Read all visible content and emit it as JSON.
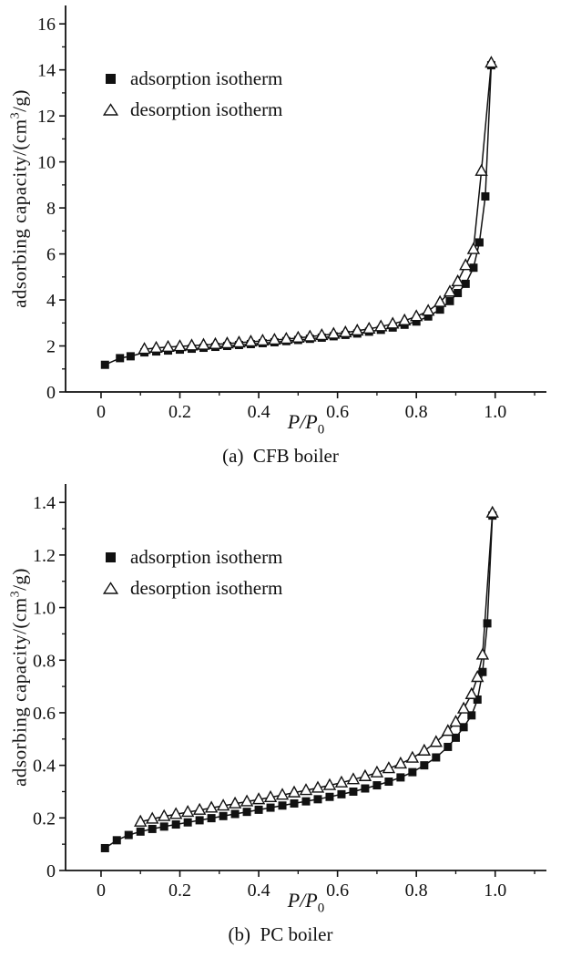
{
  "page": {
    "background": "#ffffff",
    "text_color": "#111111"
  },
  "colors": {
    "axis": "#111111",
    "line": "#111111",
    "marker_fill": "#111111",
    "marker_open_fill": "#ffffff"
  },
  "icons": {
    "adsorption_marker": "filled-square-icon",
    "desorption_marker": "open-triangle-icon"
  },
  "chart_data": [
    {
      "id": "a",
      "type": "line",
      "caption": "(a)  CFB boiler",
      "xlabel_main": "P/P",
      "xlabel_sub": "0",
      "ylabel_pre": "adsorbing capacity/(cm",
      "ylabel_sup": "3",
      "ylabel_post": "/g)",
      "xlim": [
        -0.09,
        1.13
      ],
      "ylim": [
        0,
        16.8
      ],
      "xticks": [
        0,
        0.2,
        0.4,
        0.6,
        0.8,
        1.0
      ],
      "xtick_labels": [
        "0",
        "0.2",
        "0.4",
        "0.6",
        "0.8",
        "1.0"
      ],
      "yticks": [
        0,
        2,
        4,
        6,
        8,
        10,
        12,
        14,
        16
      ],
      "ytick_labels": [
        "0",
        "2",
        "4",
        "6",
        "8",
        "10",
        "12",
        "14",
        "16"
      ],
      "grid": false,
      "legend_position": "upper-left-inside",
      "series": [
        {
          "name": "adsorption isotherm",
          "marker": "square",
          "points": [
            [
              0.01,
              1.18
            ],
            [
              0.048,
              1.47
            ],
            [
              0.075,
              1.55
            ],
            [
              0.11,
              1.72
            ],
            [
              0.14,
              1.76
            ],
            [
              0.17,
              1.8
            ],
            [
              0.2,
              1.84
            ],
            [
              0.23,
              1.88
            ],
            [
              0.26,
              1.92
            ],
            [
              0.29,
              1.96
            ],
            [
              0.32,
              2.0
            ],
            [
              0.35,
              2.04
            ],
            [
              0.38,
              2.08
            ],
            [
              0.41,
              2.12
            ],
            [
              0.44,
              2.16
            ],
            [
              0.47,
              2.21
            ],
            [
              0.5,
              2.26
            ],
            [
              0.53,
              2.31
            ],
            [
              0.56,
              2.36
            ],
            [
              0.59,
              2.42
            ],
            [
              0.62,
              2.48
            ],
            [
              0.65,
              2.54
            ],
            [
              0.68,
              2.62
            ],
            [
              0.71,
              2.7
            ],
            [
              0.74,
              2.8
            ],
            [
              0.77,
              2.92
            ],
            [
              0.8,
              3.06
            ],
            [
              0.83,
              3.28
            ],
            [
              0.86,
              3.58
            ],
            [
              0.885,
              3.95
            ],
            [
              0.905,
              4.3
            ],
            [
              0.925,
              4.7
            ],
            [
              0.945,
              5.4
            ],
            [
              0.96,
              6.5
            ],
            [
              0.975,
              8.5
            ],
            [
              0.99,
              14.2
            ]
          ]
        },
        {
          "name": "desorption isotherm",
          "marker": "triangle",
          "points": [
            [
              0.11,
              1.86
            ],
            [
              0.14,
              1.91
            ],
            [
              0.17,
              1.95
            ],
            [
              0.2,
              1.98
            ],
            [
              0.23,
              2.01
            ],
            [
              0.26,
              2.04
            ],
            [
              0.29,
              2.07
            ],
            [
              0.32,
              2.1
            ],
            [
              0.35,
              2.14
            ],
            [
              0.38,
              2.18
            ],
            [
              0.41,
              2.22
            ],
            [
              0.44,
              2.26
            ],
            [
              0.47,
              2.3
            ],
            [
              0.5,
              2.35
            ],
            [
              0.53,
              2.4
            ],
            [
              0.56,
              2.46
            ],
            [
              0.59,
              2.52
            ],
            [
              0.62,
              2.58
            ],
            [
              0.65,
              2.66
            ],
            [
              0.68,
              2.74
            ],
            [
              0.71,
              2.84
            ],
            [
              0.74,
              2.96
            ],
            [
              0.77,
              3.1
            ],
            [
              0.8,
              3.28
            ],
            [
              0.83,
              3.52
            ],
            [
              0.86,
              3.9
            ],
            [
              0.885,
              4.35
            ],
            [
              0.905,
              4.8
            ],
            [
              0.925,
              5.5
            ],
            [
              0.945,
              6.2
            ],
            [
              0.965,
              9.6
            ],
            [
              0.99,
              14.3
            ]
          ]
        }
      ]
    },
    {
      "id": "b",
      "type": "line",
      "caption": "(b)  PC boiler",
      "xlabel_main": "P/P",
      "xlabel_sub": "0",
      "ylabel_pre": "adsorbing capacity/(cm",
      "ylabel_sup": "3",
      "ylabel_post": "/g)",
      "xlim": [
        -0.09,
        1.13
      ],
      "ylim": [
        0,
        1.47
      ],
      "xticks": [
        0,
        0.2,
        0.4,
        0.6,
        0.8,
        1.0
      ],
      "xtick_labels": [
        "0",
        "0.2",
        "0.4",
        "0.6",
        "0.8",
        "1.0"
      ],
      "yticks": [
        0,
        0.2,
        0.4,
        0.6,
        0.8,
        1.0,
        1.2,
        1.4
      ],
      "ytick_labels": [
        "0",
        "0.2",
        "0.4",
        "0.6",
        "0.8",
        "1.0",
        "1.2",
        "1.4"
      ],
      "grid": false,
      "legend_position": "upper-left-inside",
      "series": [
        {
          "name": "adsorption isotherm",
          "marker": "square",
          "points": [
            [
              0.01,
              0.085
            ],
            [
              0.04,
              0.115
            ],
            [
              0.07,
              0.135
            ],
            [
              0.1,
              0.148
            ],
            [
              0.13,
              0.158
            ],
            [
              0.16,
              0.167
            ],
            [
              0.19,
              0.175
            ],
            [
              0.22,
              0.183
            ],
            [
              0.25,
              0.191
            ],
            [
              0.28,
              0.199
            ],
            [
              0.31,
              0.207
            ],
            [
              0.34,
              0.215
            ],
            [
              0.37,
              0.223
            ],
            [
              0.4,
              0.231
            ],
            [
              0.43,
              0.239
            ],
            [
              0.46,
              0.247
            ],
            [
              0.49,
              0.255
            ],
            [
              0.52,
              0.263
            ],
            [
              0.55,
              0.271
            ],
            [
              0.58,
              0.28
            ],
            [
              0.61,
              0.29
            ],
            [
              0.64,
              0.3
            ],
            [
              0.67,
              0.312
            ],
            [
              0.7,
              0.324
            ],
            [
              0.73,
              0.338
            ],
            [
              0.76,
              0.354
            ],
            [
              0.79,
              0.374
            ],
            [
              0.82,
              0.4
            ],
            [
              0.85,
              0.43
            ],
            [
              0.88,
              0.47
            ],
            [
              0.9,
              0.505
            ],
            [
              0.92,
              0.545
            ],
            [
              0.94,
              0.59
            ],
            [
              0.955,
              0.65
            ],
            [
              0.968,
              0.755
            ],
            [
              0.98,
              0.94
            ],
            [
              0.993,
              1.35
            ]
          ]
        },
        {
          "name": "desorption isotherm",
          "marker": "triangle",
          "points": [
            [
              0.1,
              0.185
            ],
            [
              0.13,
              0.196
            ],
            [
              0.16,
              0.206
            ],
            [
              0.19,
              0.214
            ],
            [
              0.22,
              0.222
            ],
            [
              0.25,
              0.23
            ],
            [
              0.28,
              0.238
            ],
            [
              0.31,
              0.246
            ],
            [
              0.34,
              0.254
            ],
            [
              0.37,
              0.262
            ],
            [
              0.4,
              0.27
            ],
            [
              0.43,
              0.278
            ],
            [
              0.46,
              0.287
            ],
            [
              0.49,
              0.296
            ],
            [
              0.52,
              0.305
            ],
            [
              0.55,
              0.314
            ],
            [
              0.58,
              0.324
            ],
            [
              0.61,
              0.334
            ],
            [
              0.64,
              0.346
            ],
            [
              0.67,
              0.358
            ],
            [
              0.7,
              0.372
            ],
            [
              0.73,
              0.388
            ],
            [
              0.76,
              0.406
            ],
            [
              0.79,
              0.428
            ],
            [
              0.82,
              0.455
            ],
            [
              0.85,
              0.488
            ],
            [
              0.88,
              0.53
            ],
            [
              0.9,
              0.565
            ],
            [
              0.92,
              0.615
            ],
            [
              0.94,
              0.67
            ],
            [
              0.955,
              0.735
            ],
            [
              0.968,
              0.82
            ],
            [
              0.993,
              1.36
            ]
          ]
        }
      ]
    }
  ]
}
